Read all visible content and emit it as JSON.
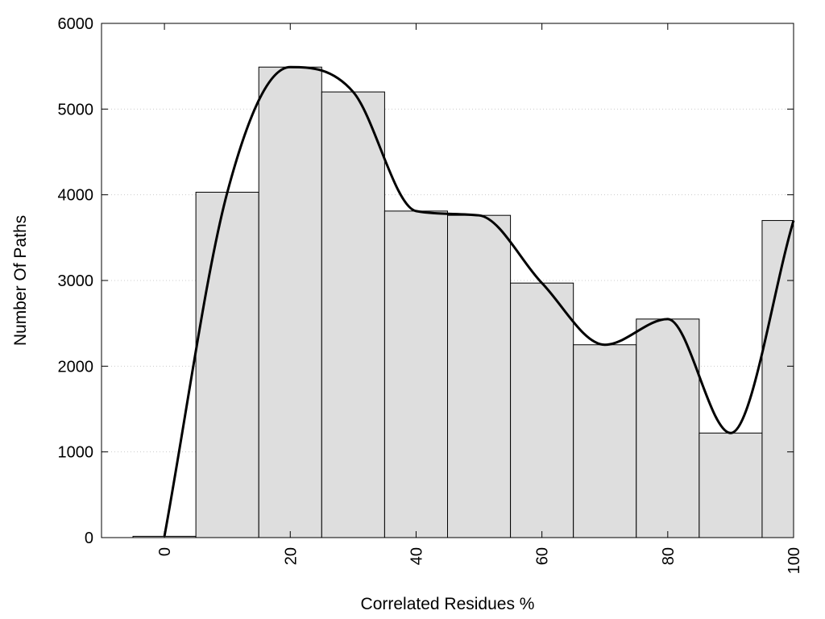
{
  "chart_data": {
    "type": "bar",
    "title": "",
    "xlabel": "Correlated Residues %",
    "ylabel": "Number Of Paths",
    "xlim": [
      -10,
      100
    ],
    "ylim": [
      0,
      6000
    ],
    "x_ticks": [
      0,
      20,
      40,
      60,
      80,
      100
    ],
    "y_ticks": [
      0,
      1000,
      2000,
      3000,
      4000,
      5000,
      6000
    ],
    "grid": "horizontal dotted",
    "legend": "none",
    "bin_width": 10,
    "categories": [
      0,
      10,
      20,
      30,
      40,
      50,
      60,
      70,
      80,
      90,
      100
    ],
    "values": [
      15,
      4030,
      5490,
      5200,
      3810,
      3760,
      2970,
      2250,
      2550,
      1220,
      3700
    ],
    "curve": {
      "type": "line",
      "x": [
        0,
        10,
        20,
        30,
        40,
        50,
        60,
        70,
        80,
        90,
        100
      ],
      "y": [
        15,
        4030,
        5490,
        5200,
        3810,
        3760,
        2970,
        2250,
        2550,
        1220,
        3700
      ]
    },
    "colors": {
      "bar_fill": "#dedede",
      "bar_stroke": "#000000",
      "line": "#000000",
      "grid": "#cccccc"
    }
  }
}
